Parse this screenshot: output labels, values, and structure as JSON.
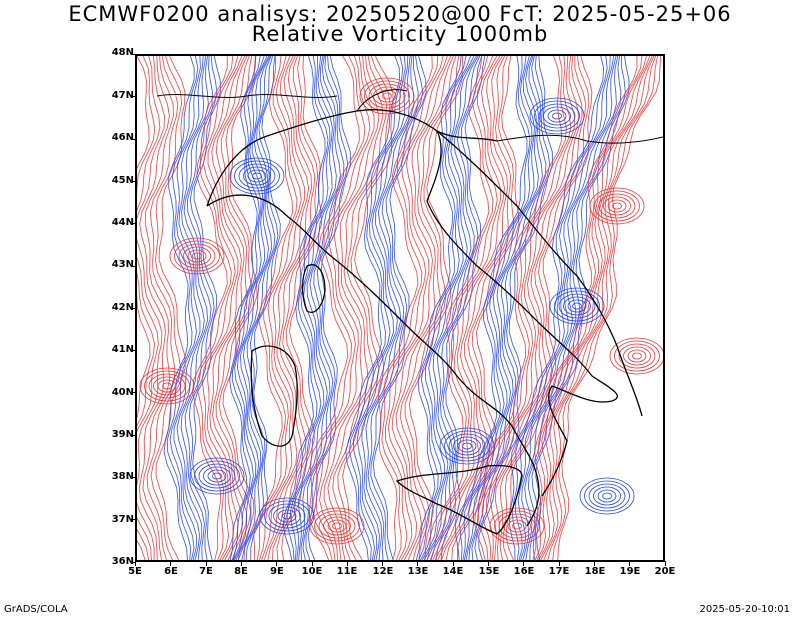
{
  "title_line1": "ECMWF0200 analisys: 20250520@00 FcT: 2025-05-25+06",
  "title_line2": "Relative Vorticity 1000mb",
  "lat_labels": [
    "48N",
    "47N",
    "46N",
    "45N",
    "44N",
    "43N",
    "42N",
    "41N",
    "40N",
    "39N",
    "38N",
    "37N",
    "36N"
  ],
  "lon_labels": [
    "5E",
    "6E",
    "7E",
    "8E",
    "9E",
    "10E",
    "11E",
    "12E",
    "13E",
    "14E",
    "15E",
    "16E",
    "17E",
    "18E",
    "19E",
    "20E"
  ],
  "footer_left": "GrADS/COLA",
  "footer_right": "2025-05-20-10:01",
  "colors": {
    "positive": "#ee3333",
    "negative": "#2244ee",
    "coast": "#000000",
    "frame": "#000000"
  },
  "map": {
    "lon_range": [
      5,
      20
    ],
    "lat_range": [
      36,
      48
    ],
    "field": "Relative Vorticity",
    "level": "1000mb"
  }
}
